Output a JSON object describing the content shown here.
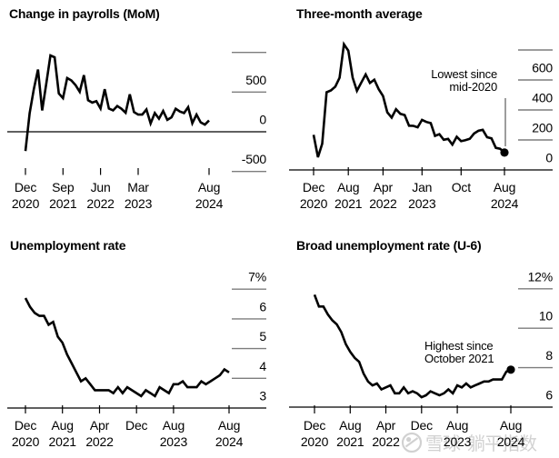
{
  "watermark": {
    "brand": "雪球",
    "username": "躺平指数"
  },
  "chart_data": [
    {
      "id": "payrolls-mom",
      "type": "line",
      "title": "Change in payrolls (MoM)",
      "unit": "thousands of jobs",
      "x_start": "Dec 2020",
      "x_end": "Aug 2024",
      "frequency": "monthly",
      "ylim": [
        -750,
        1050
      ],
      "grid": "zero-line only, right-side tick marks",
      "legend": "none",
      "baseline_value": 0,
      "ytick_values": [
        1000,
        500,
        -500
      ],
      "ylabels": [
        {
          "value": 500,
          "text": "500"
        },
        {
          "value": 0,
          "text": "0"
        },
        {
          "value": -500,
          "text": "-500"
        }
      ],
      "xticks": [
        {
          "month": "Dec",
          "year": "2020",
          "index": 0
        },
        {
          "month": "Sep",
          "year": "2021",
          "index": 9
        },
        {
          "month": "Jun",
          "year": "2022",
          "index": 18
        },
        {
          "month": "Mar",
          "year": "2023",
          "index": 27
        },
        {
          "month": "Aug",
          "year": "2024",
          "index": 44
        }
      ],
      "values": [
        -243,
        233,
        536,
        785,
        269,
        614,
        962,
        939,
        483,
        424,
        677,
        647,
        588,
        504,
        714,
        398,
        368,
        386,
        293,
        537,
        292,
        269,
        324,
        290,
        239,
        472,
        248,
        217,
        217,
        281,
        105,
        236,
        165,
        262,
        150,
        182,
        290,
        256,
        236,
        310,
        108,
        216,
        118,
        89,
        142
      ],
      "end_dot": false
    },
    {
      "id": "three-month-avg",
      "type": "line",
      "title": "Three-month average",
      "unit": "thousands of jobs",
      "x_start": "Dec 2020",
      "x_end": "Aug 2024",
      "frequency": "monthly",
      "ylim": [
        0,
        800
      ],
      "grid": "bottom axis at 0, right-side tick marks",
      "legend": "none",
      "baseline_value": 0,
      "ytick_values": [
        800,
        600,
        400,
        200
      ],
      "ylabels": [
        {
          "value": 600,
          "text": "600"
        },
        {
          "value": 400,
          "text": "400"
        },
        {
          "value": 200,
          "text": "200"
        },
        {
          "value": 0,
          "text": "0"
        }
      ],
      "xticks": [
        {
          "month": "Dec",
          "year": "2020",
          "index": 0
        },
        {
          "month": "Aug",
          "year": "2021",
          "index": 8
        },
        {
          "month": "Apr",
          "year": "2022",
          "index": 16
        },
        {
          "month": "Jan",
          "year": "2023",
          "index": 25
        },
        {
          "month": "Oct",
          "year": "",
          "index": 34
        },
        {
          "month": "Aug",
          "year": "2024",
          "index": 44
        }
      ],
      "values": [
        234,
        85,
        175,
        518,
        530,
        556,
        615,
        838,
        795,
        615,
        528,
        583,
        637,
        580,
        602,
        539,
        493,
        384,
        349,
        405,
        374,
        366,
        295,
        294,
        284,
        334,
        320,
        312,
        227,
        238,
        201,
        207,
        169,
        221,
        192,
        198,
        207,
        243,
        261,
        267,
        218,
        211,
        147,
        141,
        116
      ],
      "end_dot": true,
      "annotation": {
        "line1": "Lowest since",
        "line2": "mid-2020",
        "align": "right",
        "pointer_to_last_point": true
      }
    },
    {
      "id": "unemployment-rate",
      "type": "line",
      "title": "Unemployment rate",
      "unit": "percent",
      "x_start": "Dec 2020",
      "x_end": "Aug 2024",
      "frequency": "monthly",
      "ylim": [
        3,
        7
      ],
      "grid": "bottom axis at 3, right-side tick marks",
      "legend": "none",
      "baseline_value": 3,
      "ytick_values": [
        7,
        6,
        5,
        4
      ],
      "ylabels": [
        {
          "value": 7,
          "text": "7%"
        },
        {
          "value": 6,
          "text": "6"
        },
        {
          "value": 5,
          "text": "5"
        },
        {
          "value": 4,
          "text": "4"
        },
        {
          "value": 3,
          "text": "3"
        }
      ],
      "xticks": [
        {
          "month": "Dec",
          "year": "2020",
          "index": 0
        },
        {
          "month": "Aug",
          "year": "2021",
          "index": 8
        },
        {
          "month": "Apr",
          "year": "2022",
          "index": 16
        },
        {
          "month": "Dec",
          "year": "",
          "index": 24
        },
        {
          "month": "Aug",
          "year": "2023",
          "index": 32
        },
        {
          "month": "Aug",
          "year": "2024",
          "index": 44
        }
      ],
      "values": [
        6.7,
        6.4,
        6.2,
        6.1,
        6.1,
        5.8,
        5.9,
        5.4,
        5.2,
        4.8,
        4.5,
        4.2,
        3.9,
        4.0,
        3.8,
        3.6,
        3.6,
        3.6,
        3.6,
        3.5,
        3.7,
        3.5,
        3.7,
        3.6,
        3.5,
        3.4,
        3.6,
        3.5,
        3.4,
        3.7,
        3.6,
        3.5,
        3.8,
        3.8,
        3.9,
        3.7,
        3.7,
        3.7,
        3.9,
        3.8,
        3.9,
        4.0,
        4.1,
        4.3,
        4.2
      ],
      "end_dot": false
    },
    {
      "id": "u6-rate",
      "type": "line",
      "title": "Broad unemployment rate (U-6)",
      "unit": "percent",
      "x_start": "Dec 2020",
      "x_end": "Aug 2024",
      "frequency": "monthly",
      "ylim": [
        6,
        12
      ],
      "grid": "bottom axis at 6, right-side tick marks",
      "legend": "none",
      "baseline_value": 6,
      "ytick_values": [
        12,
        10,
        8
      ],
      "ylabels": [
        {
          "value": 12,
          "text": "12%"
        },
        {
          "value": 10,
          "text": "10"
        },
        {
          "value": 8,
          "text": "8"
        },
        {
          "value": 6,
          "text": "6"
        }
      ],
      "xticks": [
        {
          "month": "Dec",
          "year": "2020",
          "index": 0
        },
        {
          "month": "Aug",
          "year": "2021",
          "index": 8
        },
        {
          "month": "Apr",
          "year": "2022",
          "index": 16
        },
        {
          "month": "Dec",
          "year": "",
          "index": 24
        },
        {
          "month": "Aug",
          "year": "2023",
          "index": 32
        },
        {
          "month": "Aug",
          "year": "2024",
          "index": 44
        }
      ],
      "values": [
        11.7,
        11.1,
        11.1,
        10.7,
        10.4,
        10.2,
        9.8,
        9.2,
        8.8,
        8.5,
        8.3,
        7.7,
        7.3,
        7.1,
        7.2,
        6.9,
        7.0,
        7.1,
        6.7,
        6.7,
        7.0,
        6.7,
        6.8,
        6.7,
        6.5,
        6.6,
        6.8,
        6.7,
        6.6,
        6.7,
        6.9,
        6.7,
        7.1,
        7.0,
        7.2,
        7.0,
        7.1,
        7.2,
        7.3,
        7.3,
        7.4,
        7.4,
        7.4,
        7.8,
        7.9
      ],
      "end_dot": true,
      "annotation": {
        "line1": "Highest since",
        "line2": "October 2021",
        "align": "left",
        "pointer_to_last_point": false
      }
    }
  ],
  "colors": {
    "line": "#000000",
    "axis": "#000000",
    "side_ticks": "#7d7d7d",
    "pointer_line": "#4d4d4d",
    "watermark": "#c6c6c6",
    "background": "#ffffff"
  }
}
